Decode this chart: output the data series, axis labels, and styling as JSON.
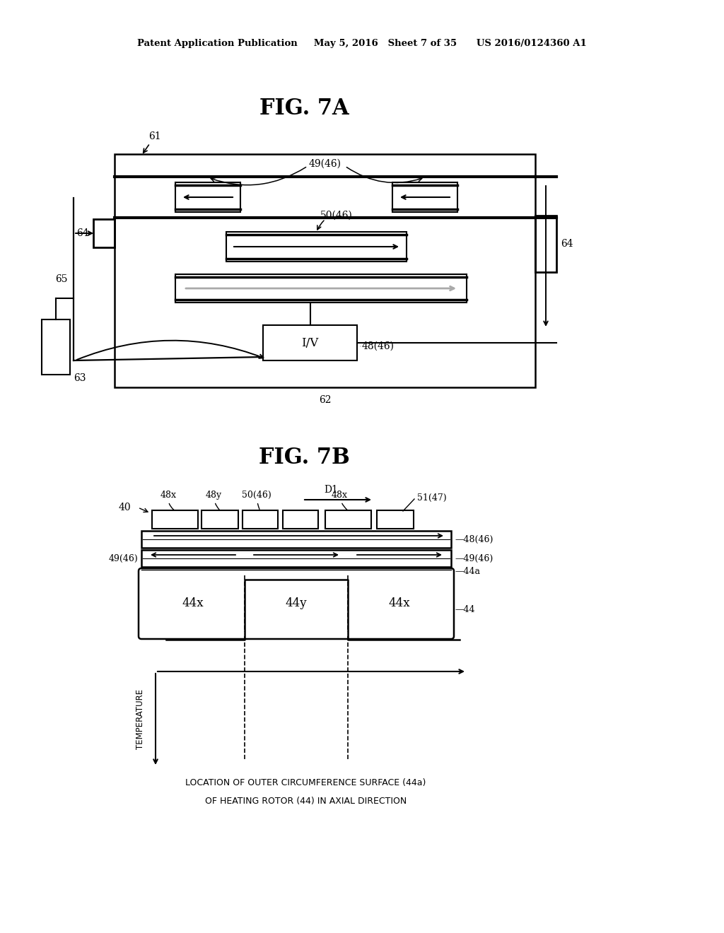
{
  "bg_color": "#ffffff",
  "line_color": "#000000",
  "gray_color": "#aaaaaa",
  "header": "Patent Application Publication     May 5, 2016   Sheet 7 of 35      US 2016/0124360 A1",
  "fig7a_title": "FIG. 7A",
  "fig7b_title": "FIG. 7B"
}
